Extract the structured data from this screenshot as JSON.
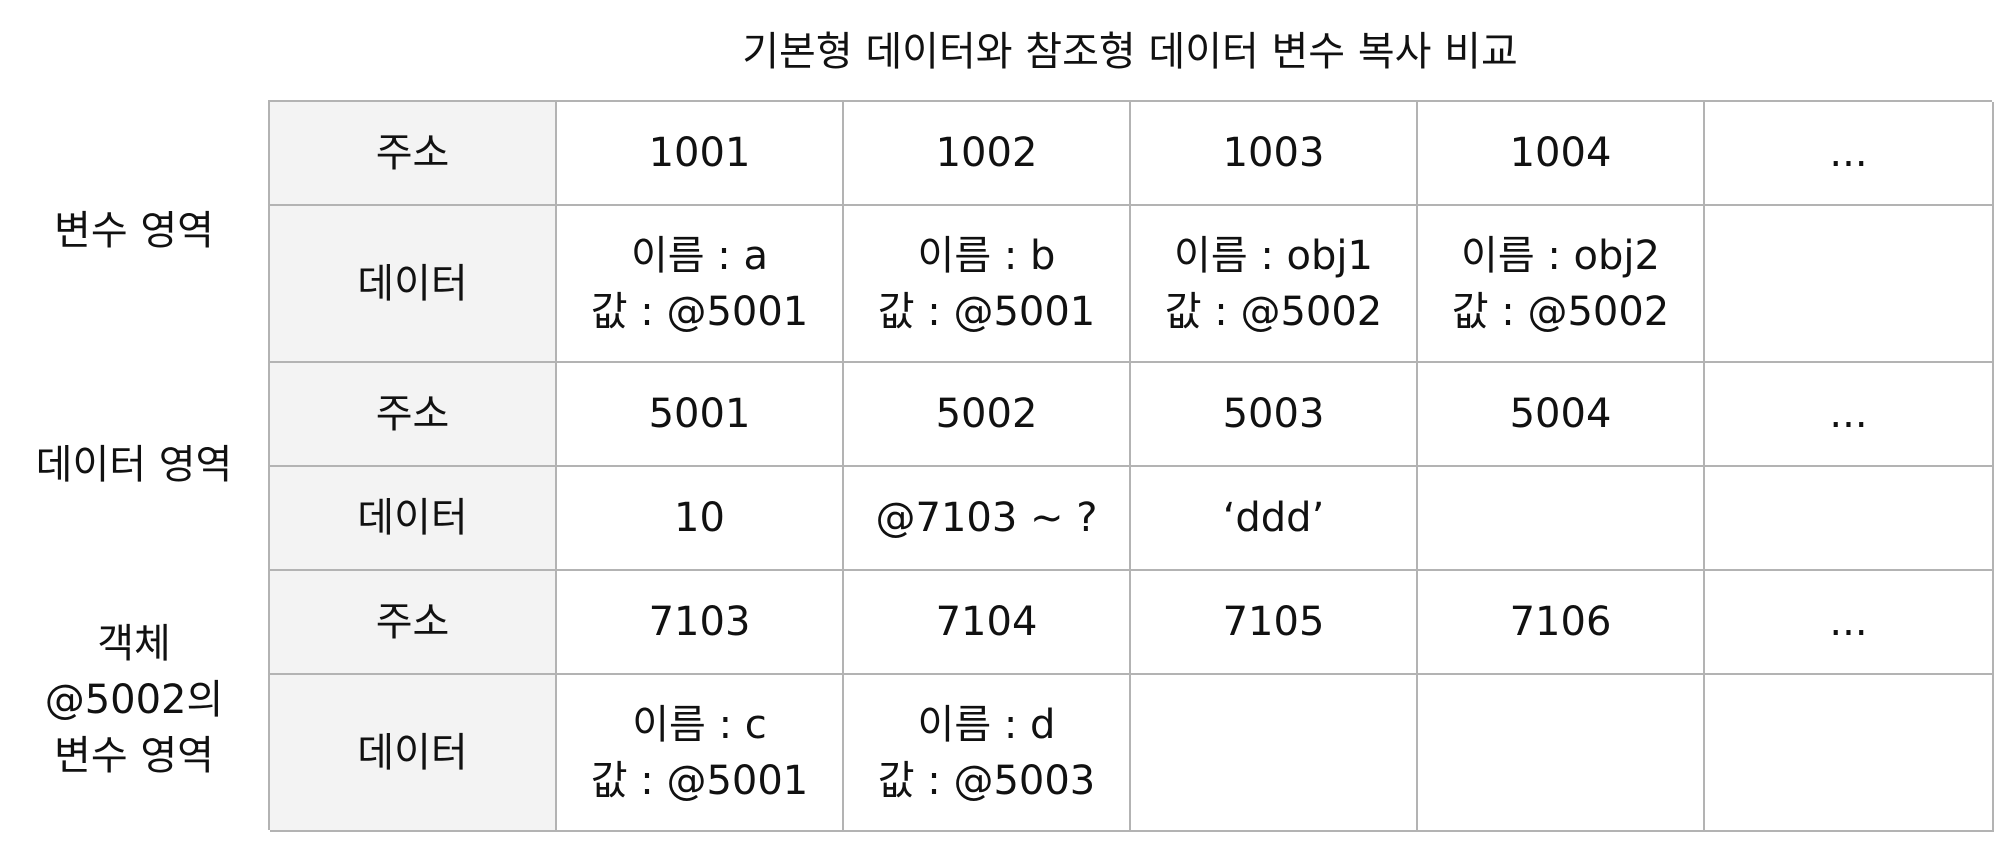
{
  "title": "기본형 데이터와 참조형 데이터 변수 복사 비교",
  "groups": [
    {
      "label_lines": [
        "변수 영역"
      ],
      "address_header": "주소",
      "data_header": "데이터",
      "addresses": [
        "1001",
        "1002",
        "1003",
        "1004",
        "..."
      ],
      "data": [
        {
          "line1": "이름 : a",
          "line2": "값 : @5001"
        },
        {
          "line1": "이름 : b",
          "line2": "값 : @5001"
        },
        {
          "line1": "이름 : obj1",
          "line2": "값 : @5002"
        },
        {
          "line1": "이름 : obj2",
          "line2": "값 : @5002"
        },
        {
          "line1": "",
          "line2": ""
        }
      ]
    },
    {
      "label_lines": [
        "데이터 영역"
      ],
      "address_header": "주소",
      "data_header": "데이터",
      "addresses": [
        "5001",
        "5002",
        "5003",
        "5004",
        "..."
      ],
      "data": [
        {
          "line1": "10",
          "line2": ""
        },
        {
          "line1": "@7103 ~ ?",
          "line2": ""
        },
        {
          "line1": "‘ddd’",
          "line2": ""
        },
        {
          "line1": "",
          "line2": ""
        },
        {
          "line1": "",
          "line2": ""
        }
      ]
    },
    {
      "label_lines": [
        "객체",
        "@5002의",
        "변수 영역"
      ],
      "address_header": "주소",
      "data_header": "데이터",
      "addresses": [
        "7103",
        "7104",
        "7105",
        "7106",
        "..."
      ],
      "data": [
        {
          "line1": "이름 : c",
          "line2": "값 : @5001"
        },
        {
          "line1": "이름 : d",
          "line2": "값 : @5003"
        },
        {
          "line1": "",
          "line2": ""
        },
        {
          "line1": "",
          "line2": ""
        },
        {
          "line1": "",
          "line2": ""
        }
      ]
    }
  ]
}
